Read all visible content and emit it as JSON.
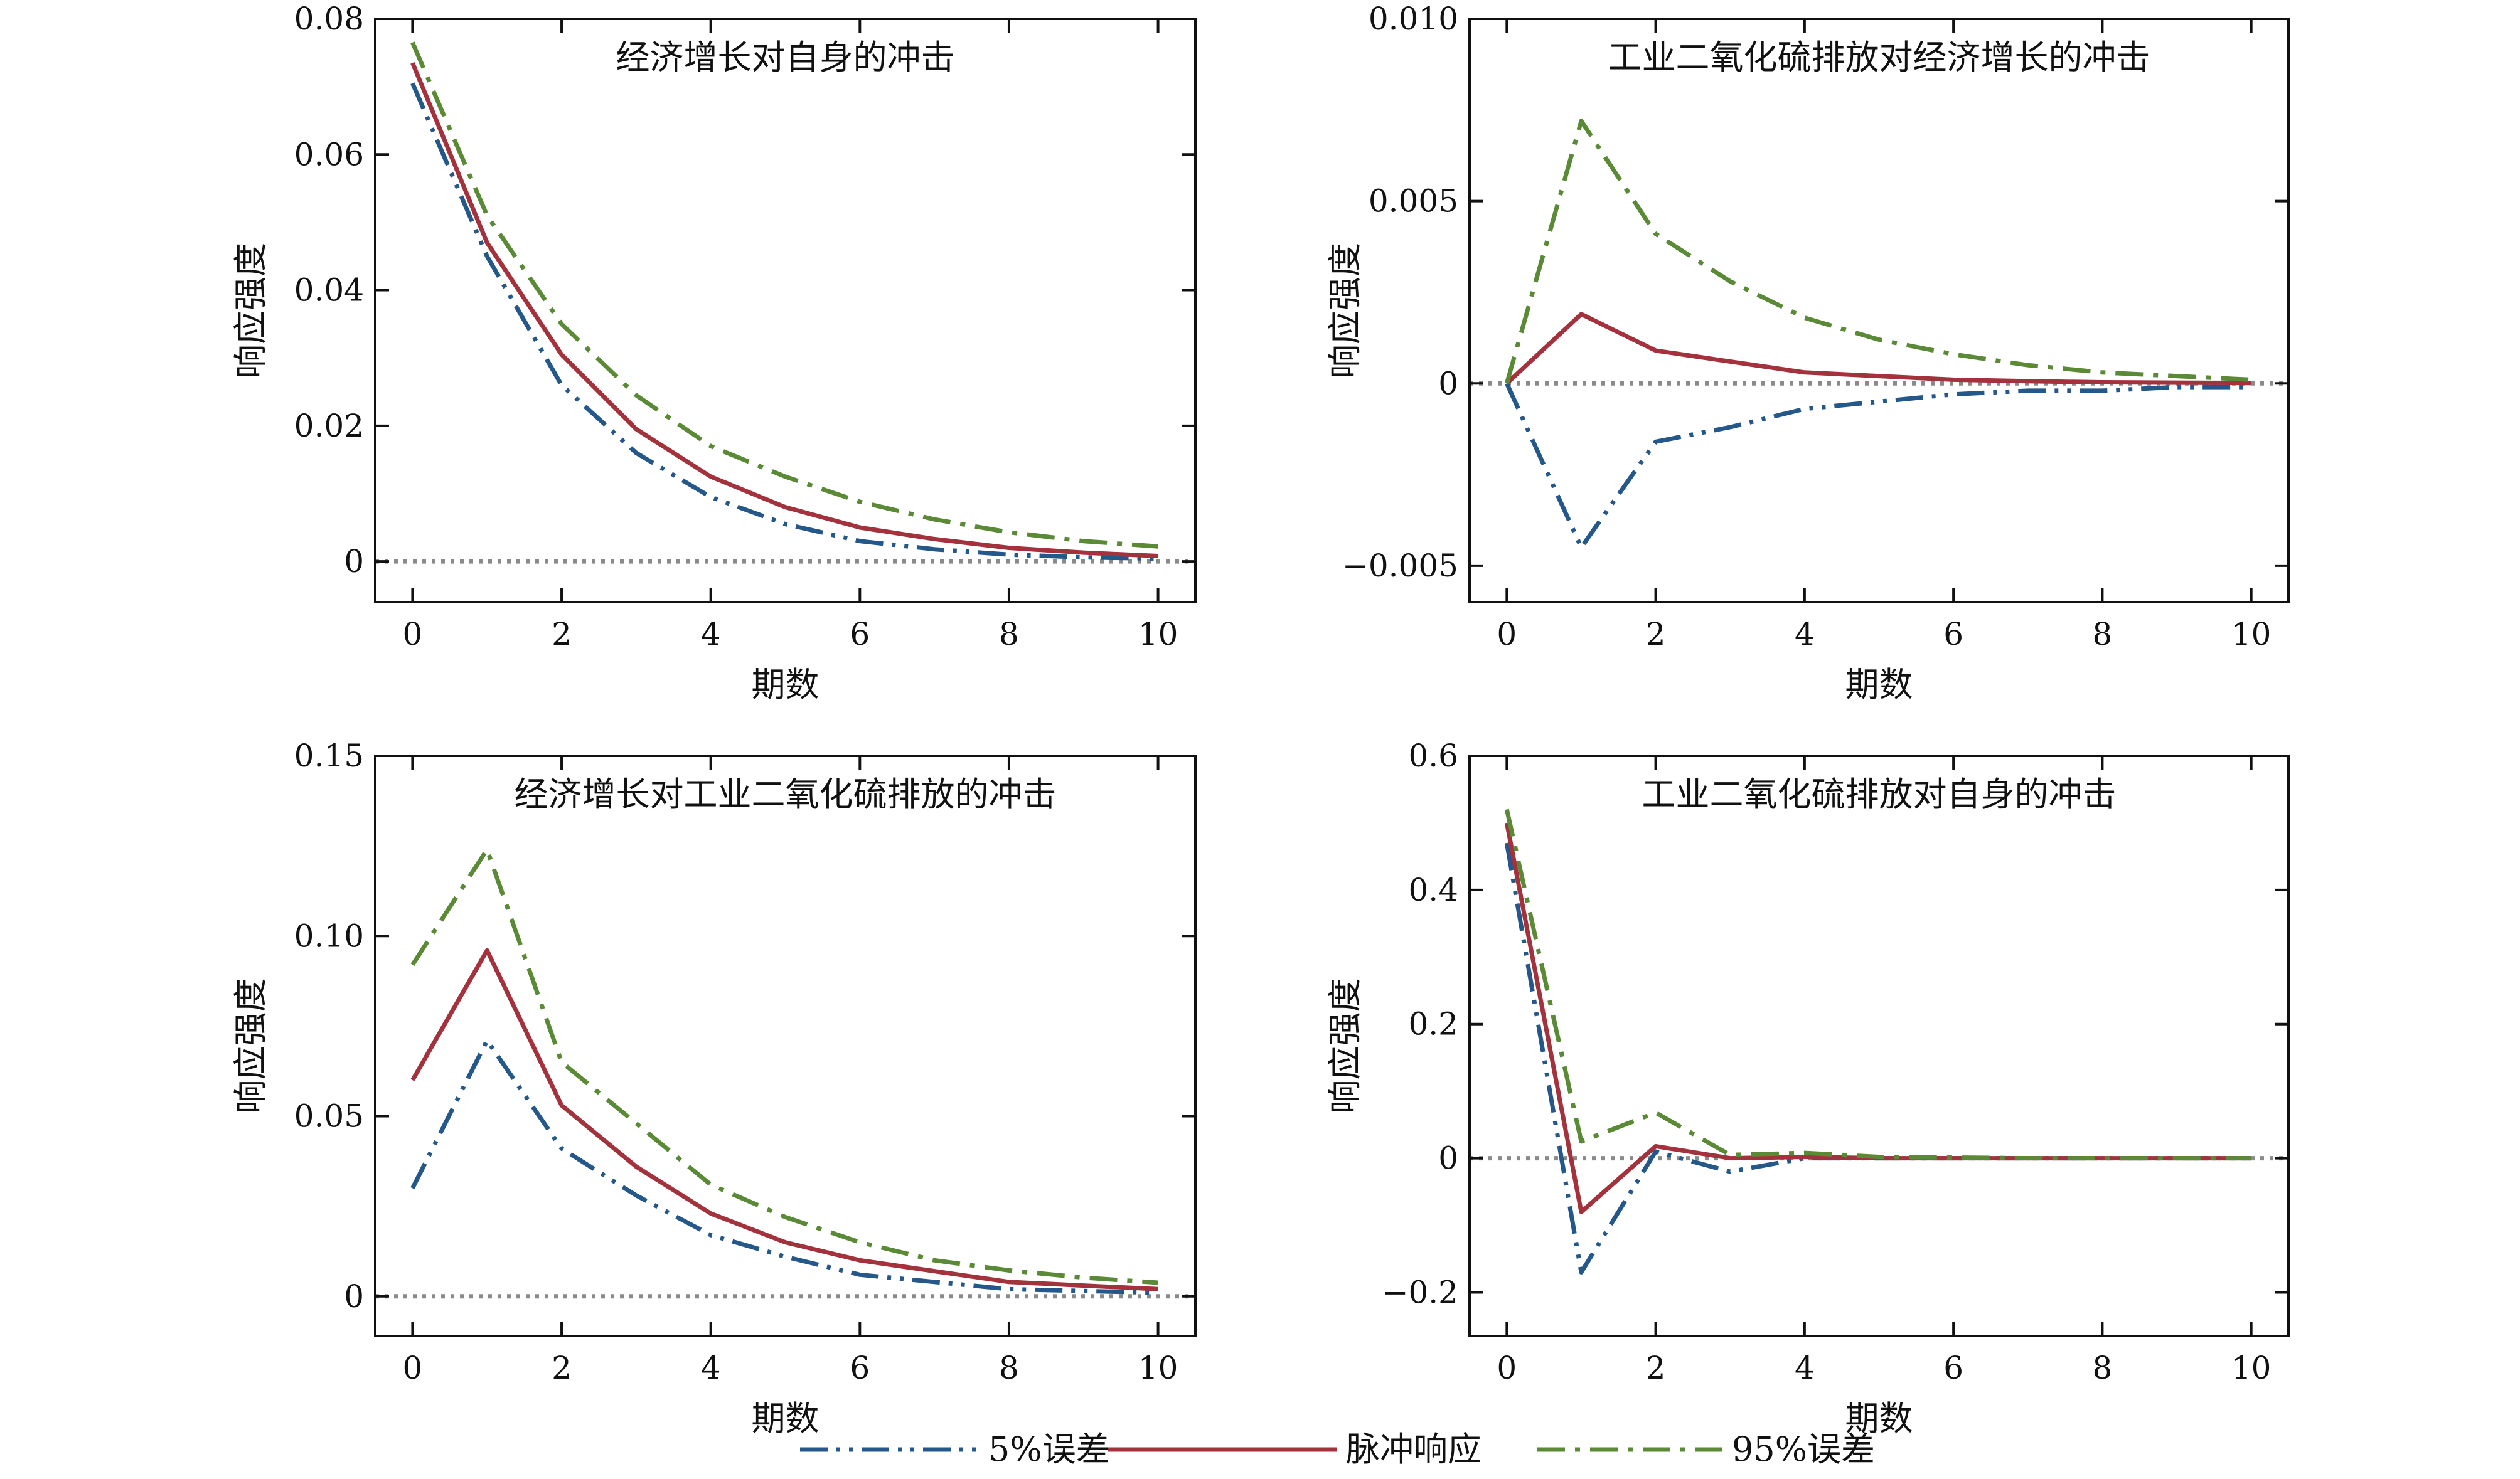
{
  "figure": {
    "background": "#ffffff"
  },
  "legend": {
    "placement": "bottom-center",
    "items": [
      {
        "label": "5%误差",
        "series": "lower",
        "style": "dash-dot-dot",
        "color": "#24578a"
      },
      {
        "label": "脉冲响应",
        "series": "irf",
        "style": "solid",
        "color": "#a4323d"
      },
      {
        "label": "95%误差",
        "series": "upper",
        "style": "dash-dot",
        "color": "#5a8a35"
      }
    ]
  },
  "colors": {
    "lower": "#24578a",
    "irf": "#a4323d",
    "upper": "#5a8a35",
    "zero_line": "#8a8a8a",
    "axis": "#111111"
  },
  "chart_data": [
    {
      "type": "line",
      "title": "经济增长对自身的冲击",
      "xlabel": "期数",
      "ylabel": "响应强度",
      "xlim": [
        -0.5,
        10.5
      ],
      "ylim": [
        -0.006,
        0.08
      ],
      "xticks": [
        0,
        2,
        4,
        6,
        8,
        10
      ],
      "xtick_labels": [
        "0",
        "2",
        "4",
        "6",
        "8",
        "10"
      ],
      "yticks": [
        0,
        0.02,
        0.04,
        0.06,
        0.08
      ],
      "ytick_labels": [
        "0",
        "0.02",
        "0.04",
        "0.06",
        "0.08"
      ],
      "zero_line": true,
      "grid": false,
      "x": [
        0,
        1,
        2,
        3,
        4,
        5,
        6,
        7,
        8,
        9,
        10
      ],
      "series": [
        {
          "key": "lower",
          "values": [
            0.0705,
            0.045,
            0.026,
            0.016,
            0.0095,
            0.0055,
            0.003,
            0.0018,
            0.001,
            0.0006,
            0.0004
          ]
        },
        {
          "key": "irf",
          "values": [
            0.0735,
            0.047,
            0.0305,
            0.0195,
            0.0125,
            0.008,
            0.005,
            0.0033,
            0.002,
            0.0013,
            0.0008
          ]
        },
        {
          "key": "upper",
          "values": [
            0.0765,
            0.051,
            0.035,
            0.0245,
            0.017,
            0.0125,
            0.0088,
            0.0062,
            0.0043,
            0.003,
            0.0022
          ]
        }
      ]
    },
    {
      "type": "line",
      "title": "工业二氧化硫排放对经济增长的冲击",
      "xlabel": "期数",
      "ylabel": "响应强度",
      "xlim": [
        -0.5,
        10.5
      ],
      "ylim": [
        -0.006,
        0.01
      ],
      "xticks": [
        0,
        2,
        4,
        6,
        8,
        10
      ],
      "xtick_labels": [
        "0",
        "2",
        "4",
        "6",
        "8",
        "10"
      ],
      "yticks": [
        -0.005,
        0,
        0.005,
        0.01
      ],
      "ytick_labels": [
        "−0.005",
        "0",
        "0.005",
        "0.010"
      ],
      "zero_line": true,
      "grid": false,
      "x": [
        0,
        1,
        2,
        3,
        4,
        5,
        6,
        7,
        8,
        9,
        10
      ],
      "series": [
        {
          "key": "lower",
          "values": [
            0,
            -0.0045,
            -0.0016,
            -0.0012,
            -0.0007,
            -0.0005,
            -0.0003,
            -0.0002,
            -0.0002,
            -0.0001,
            -0.0001
          ]
        },
        {
          "key": "irf",
          "values": [
            0,
            0.0019,
            0.0009,
            0.0006,
            0.0003,
            0.0002,
            0.0001,
            6e-05,
            3e-05,
            2e-05,
            1e-05
          ]
        },
        {
          "key": "upper",
          "values": [
            0,
            0.0072,
            0.0041,
            0.0028,
            0.0018,
            0.0012,
            0.0008,
            0.0005,
            0.0003,
            0.0002,
            0.0001
          ]
        }
      ]
    },
    {
      "type": "line",
      "title": "经济增长对工业二氧化硫排放的冲击",
      "xlabel": "期数",
      "ylabel": "响应强度",
      "xlim": [
        -0.5,
        10.5
      ],
      "ylim": [
        -0.011,
        0.15
      ],
      "xticks": [
        0,
        2,
        4,
        6,
        8,
        10
      ],
      "xtick_labels": [
        "0",
        "2",
        "4",
        "6",
        "8",
        "10"
      ],
      "yticks": [
        0,
        0.05,
        0.1,
        0.15
      ],
      "ytick_labels": [
        "0",
        "0.05",
        "0.10",
        "0.15"
      ],
      "zero_line": true,
      "grid": false,
      "x": [
        0,
        1,
        2,
        3,
        4,
        5,
        6,
        7,
        8,
        9,
        10
      ],
      "series": [
        {
          "key": "lower",
          "values": [
            0.03,
            0.071,
            0.041,
            0.028,
            0.017,
            0.011,
            0.006,
            0.004,
            0.002,
            0.0015,
            0.001
          ]
        },
        {
          "key": "irf",
          "values": [
            0.06,
            0.096,
            0.053,
            0.036,
            0.023,
            0.015,
            0.01,
            0.007,
            0.004,
            0.003,
            0.002
          ]
        },
        {
          "key": "upper",
          "values": [
            0.092,
            0.124,
            0.065,
            0.048,
            0.031,
            0.022,
            0.015,
            0.01,
            0.0072,
            0.0052,
            0.0038
          ]
        }
      ]
    },
    {
      "type": "line",
      "title": "工业二氧化硫排放对自身的冲击",
      "xlabel": "期数",
      "ylabel": "响应强度",
      "xlim": [
        -0.5,
        10.5
      ],
      "ylim": [
        -0.265,
        0.6
      ],
      "xticks": [
        0,
        2,
        4,
        6,
        8,
        10
      ],
      "xtick_labels": [
        "0",
        "2",
        "4",
        "6",
        "8",
        "10"
      ],
      "yticks": [
        -0.2,
        0,
        0.2,
        0.4,
        0.6
      ],
      "ytick_labels": [
        "−0.2",
        "0",
        "0.2",
        "0.4",
        "0.6"
      ],
      "zero_line": true,
      "grid": false,
      "x": [
        0,
        1,
        2,
        3,
        4,
        5,
        6,
        7,
        8,
        9,
        10
      ],
      "series": [
        {
          "key": "lower",
          "values": [
            0.47,
            -0.17,
            0.01,
            -0.02,
            0.0,
            0.0,
            0.0,
            0.0,
            0.0,
            0.0,
            0.0
          ]
        },
        {
          "key": "irf",
          "values": [
            0.5,
            -0.08,
            0.018,
            0.0,
            0.002,
            0.0,
            0.0,
            0.0,
            0.0,
            0.0,
            0.0
          ]
        },
        {
          "key": "upper",
          "values": [
            0.52,
            0.025,
            0.068,
            0.005,
            0.008,
            0.002,
            0.001,
            0.0,
            0.0,
            0.0,
            0.0
          ]
        }
      ]
    }
  ]
}
